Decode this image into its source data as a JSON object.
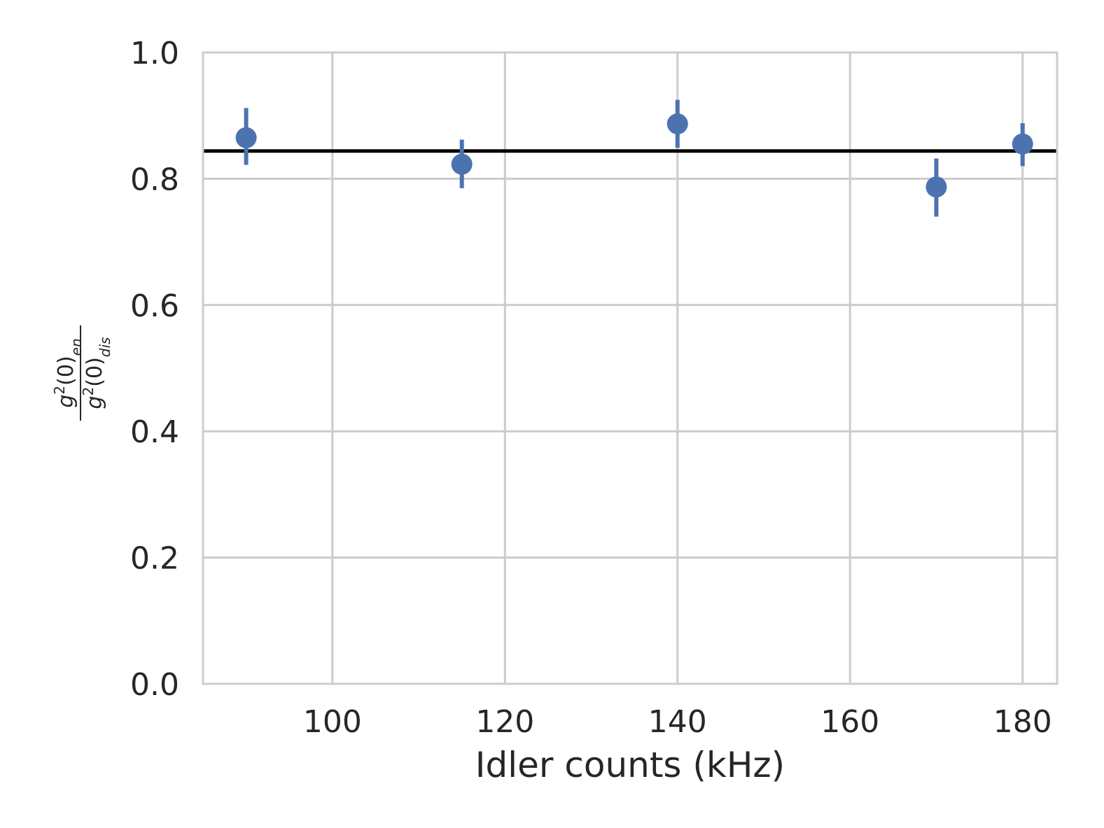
{
  "chart_data": {
    "type": "scatter",
    "title": "",
    "xlabel": "Idler counts (kHz)",
    "ylabel": {
      "numerator": {
        "base": "g",
        "sup": "2",
        "mid": "(0)",
        "sub": "en"
      },
      "denominator": {
        "base": "g",
        "sup": "2",
        "mid": "(0)",
        "sub": "dis"
      }
    },
    "xlim": [
      85,
      184
    ],
    "ylim": [
      0.0,
      1.0
    ],
    "xticks": [
      100,
      120,
      140,
      160,
      180
    ],
    "xtick_labels": [
      "100",
      "120",
      "140",
      "160",
      "180"
    ],
    "yticks": [
      0.0,
      0.2,
      0.4,
      0.6,
      0.8,
      1.0
    ],
    "ytick_labels": [
      "0.0",
      "0.2",
      "0.4",
      "0.6",
      "0.8",
      "1.0"
    ],
    "grid": true,
    "series": [
      {
        "x": [
          90,
          115,
          140,
          170,
          180
        ],
        "y": [
          0.865,
          0.823,
          0.887,
          0.787,
          0.855
        ],
        "yerr_low": [
          0.822,
          0.785,
          0.849,
          0.74,
          0.82
        ],
        "yerr_high": [
          0.912,
          0.862,
          0.925,
          0.832,
          0.888
        ],
        "color": "#4C72B0"
      }
    ],
    "reference_line": {
      "y": 0.844,
      "color": "#000000"
    },
    "colors": {
      "grid": "#cccccc",
      "spine": "#cccccc",
      "text": "#262626"
    }
  }
}
